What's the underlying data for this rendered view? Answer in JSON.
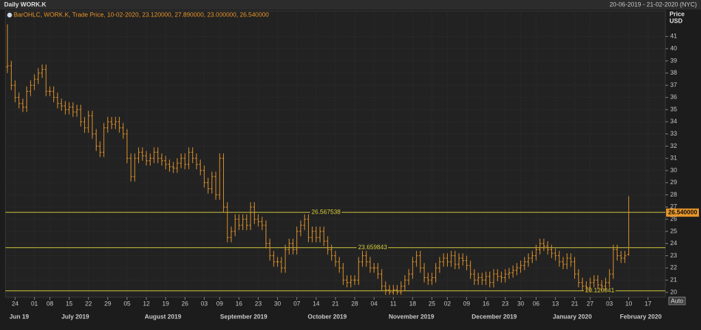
{
  "chart_data": {
    "type": "ohlc",
    "title": "Daily WORK.K",
    "subtitle": "20-06-2019 - 21-02-2020 (NYC)",
    "legend": "BarOHLC, WORK.K, Trade Price, 10-02-2020, 23.120000, 27.890000, 23.000000, 26.540000",
    "ylabel": "Price",
    "yunit": "USD",
    "button": "Auto",
    "color": "#e8962a",
    "grid": true,
    "ylim": [
      19.6,
      42.2
    ],
    "yticks": [
      20,
      21,
      22,
      23,
      24,
      25,
      26,
      27,
      28,
      29,
      30,
      31,
      32,
      33,
      34,
      35,
      36,
      37,
      38,
      39,
      40,
      41
    ],
    "hline_color": "#d8cf3c",
    "hlines": [
      26.567538,
      23.659843,
      20.120041
    ],
    "last_label": "26.540000",
    "months": [
      "Jun 19",
      "July 2019",
      "August 2019",
      "September 2019",
      "October 2019",
      "November 2019",
      "December 2019",
      "January 2020",
      "February 2020"
    ],
    "categories": [
      null,
      null,
      "24",
      null,
      null,
      null,
      null,
      "01",
      null,
      null,
      null,
      "08",
      null,
      null,
      null,
      null,
      "15",
      null,
      null,
      null,
      null,
      "22",
      null,
      null,
      null,
      null,
      "29",
      null,
      null,
      null,
      null,
      "05",
      null,
      null,
      null,
      null,
      "12",
      null,
      null,
      null,
      null,
      "19",
      null,
      null,
      null,
      null,
      "26",
      null,
      null,
      null,
      null,
      "03",
      null,
      null,
      null,
      "09",
      null,
      null,
      null,
      null,
      "16",
      null,
      null,
      null,
      null,
      "23",
      null,
      null,
      null,
      null,
      "30",
      null,
      null,
      null,
      null,
      "07",
      null,
      null,
      null,
      null,
      "14",
      null,
      null,
      null,
      null,
      "21",
      null,
      null,
      null,
      null,
      "28",
      null,
      null,
      null,
      null,
      "04",
      null,
      null,
      null,
      null,
      "11",
      null,
      null,
      null,
      null,
      "18",
      null,
      null,
      null,
      null,
      "25",
      null,
      null,
      null,
      "02",
      null,
      null,
      null,
      null,
      "09",
      null,
      null,
      null,
      null,
      "16",
      null,
      null,
      null,
      null,
      "23",
      null,
      null,
      null,
      "30",
      null,
      null,
      null,
      "06",
      null,
      null,
      null,
      null,
      "13",
      null,
      null,
      null,
      null,
      "21",
      null,
      null,
      null,
      "27",
      null,
      null,
      null,
      null,
      "03",
      null,
      null,
      null,
      null,
      "10",
      null,
      null,
      null,
      null,
      "17",
      null,
      null,
      null,
      null
    ],
    "open": [
      38.5,
      38.6,
      37,
      36,
      35.5,
      35.2,
      36.5,
      37,
      37.5,
      38,
      38.3,
      36.5,
      36.5,
      36,
      35.5,
      35.3,
      35,
      35.2,
      34.8,
      35,
      34,
      33.5,
      34.5,
      33,
      32,
      31.5,
      33.5,
      34,
      33.8,
      34,
      33.5,
      33,
      31,
      29.5,
      31,
      31.5,
      31.2,
      30.8,
      31,
      31.5,
      31,
      30.8,
      30.5,
      30.3,
      30.2,
      30.6,
      31,
      30.5,
      31.5,
      31,
      30.5,
      30,
      29,
      28.5,
      29.5,
      28,
      31,
      27,
      24.5,
      25,
      26,
      25.5,
      26,
      25.5,
      27,
      26,
      25.8,
      25.5,
      24,
      23,
      22.5,
      22.5,
      22,
      23.5,
      24,
      23.5,
      25,
      25.5,
      26,
      24.5,
      25,
      24.5,
      25,
      24.2,
      23.5,
      23,
      22.5,
      22,
      21,
      20.8,
      21,
      21,
      22.5,
      23,
      22.5,
      22,
      22,
      21.5,
      20.5,
      20.2,
      20,
      20.2,
      20,
      20.5,
      21,
      21.5,
      22.5,
      23,
      22,
      21.2,
      21,
      21.2,
      22,
      22.5,
      22.8,
      22.5,
      23,
      22.3,
      22.8,
      22.6,
      22.2,
      21.5,
      21,
      21.2,
      21,
      21.3,
      20.8,
      21.5,
      21.3,
      21.2,
      21.5,
      21.6,
      21.8,
      22,
      22.2,
      22.5,
      22.8,
      23,
      23.5,
      24,
      23.8,
      23.5,
      23.2,
      23,
      22.5,
      22.3,
      22.8,
      22.5,
      21.5,
      20.8,
      20.5,
      20.4,
      20.8,
      21,
      20.6,
      20.5,
      20.8,
      21.5,
      23.5,
      23,
      22.8,
      23.12,
      null,
      null,
      null,
      null,
      null,
      null,
      null,
      null,
      null
    ],
    "high": [
      42,
      39,
      37.4,
      36.4,
      35.9,
      36.9,
      37.4,
      37.9,
      38.4,
      38.7,
      38.7,
      36.9,
      36.9,
      36.4,
      35.9,
      35.7,
      35.6,
      35.6,
      35.4,
      35.4,
      34.4,
      34.9,
      34.9,
      33.4,
      32.4,
      33.9,
      34.4,
      34.4,
      34.4,
      34.4,
      33.9,
      33.4,
      31.4,
      31.4,
      31.9,
      31.9,
      31.6,
      31.4,
      31.9,
      31.9,
      31.4,
      31.2,
      30.9,
      30.7,
      31,
      31.4,
      31.4,
      31.9,
      31.9,
      31.4,
      30.9,
      30.4,
      29.4,
      29.9,
      29.9,
      31.4,
      31.4,
      27.4,
      25.4,
      26.4,
      26.4,
      26.4,
      26.4,
      27.4,
      27.4,
      26.4,
      26.2,
      25.9,
      24.4,
      23.4,
      22.9,
      22.9,
      23.9,
      24.4,
      24.4,
      25.4,
      25.9,
      26.4,
      26.4,
      25.4,
      25.4,
      25.4,
      25.4,
      24.6,
      23.9,
      23.4,
      22.9,
      22.4,
      21.4,
      21.4,
      21.4,
      22.9,
      23.4,
      23.4,
      22.9,
      22.4,
      22.4,
      21.9,
      20.9,
      20.6,
      20.6,
      20.6,
      20.9,
      21.4,
      21.9,
      22.9,
      23.4,
      23.4,
      22.4,
      21.6,
      21.6,
      22.4,
      22.9,
      23.2,
      23.2,
      23.4,
      23.4,
      23.2,
      23.2,
      23,
      22.6,
      21.9,
      21.6,
      21.6,
      21.7,
      21.7,
      21.9,
      21.9,
      21.7,
      21.9,
      22,
      22.2,
      22.4,
      22.6,
      22.9,
      23.2,
      23.4,
      23.9,
      24.4,
      24.4,
      24.2,
      23.9,
      23.6,
      23.4,
      22.9,
      23.2,
      23.2,
      22.9,
      21.9,
      21.2,
      20.9,
      21.2,
      21.4,
      21.4,
      21,
      21.2,
      21.9,
      23.9,
      23.9,
      23.4,
      23.4,
      27.89,
      null,
      null,
      null,
      null,
      null,
      null,
      null,
      null,
      null
    ],
    "low": [
      38,
      36.6,
      35.6,
      35.1,
      34.8,
      34.8,
      36.1,
      36.6,
      37.1,
      37.6,
      36.1,
      36.1,
      35.6,
      35.1,
      34.9,
      34.6,
      34.6,
      34.4,
      34.4,
      33.6,
      33.1,
      33.1,
      32.6,
      31.6,
      31.1,
      31.1,
      33.1,
      33.4,
      33.4,
      33.1,
      32.6,
      30.6,
      29.1,
      29.1,
      30.6,
      30.8,
      30.4,
      30.4,
      30.6,
      30.6,
      30.4,
      30.1,
      29.9,
      29.8,
      29.8,
      30.2,
      30.1,
      30.1,
      30.6,
      30.1,
      29.6,
      28.6,
      28.1,
      28.1,
      27.6,
      27.6,
      26.6,
      24.1,
      24.1,
      24.6,
      25.1,
      25.1,
      25.1,
      25.1,
      25.6,
      25.4,
      25.1,
      23.6,
      22.6,
      22.1,
      22.1,
      21.6,
      21.6,
      23.1,
      23.1,
      23.1,
      24.6,
      25.1,
      24.1,
      24.1,
      24.1,
      24.1,
      23.8,
      23.1,
      22.6,
      22.1,
      21.6,
      20.6,
      20.4,
      20.4,
      20.6,
      20.6,
      22.1,
      22.1,
      21.6,
      21.6,
      21.1,
      20.1,
      19.8,
      19.8,
      19.8,
      19.8,
      19.8,
      20.1,
      20.6,
      21.1,
      22.1,
      21.6,
      20.8,
      20.6,
      20.6,
      20.8,
      21.6,
      22.1,
      22.1,
      22.1,
      21.9,
      21.9,
      22.2,
      21.8,
      21.1,
      20.6,
      20.6,
      20.6,
      20.6,
      20.4,
      20.4,
      20.9,
      20.8,
      20.8,
      21.1,
      21.2,
      21.4,
      21.6,
      21.8,
      22.1,
      22.4,
      22.6,
      23.1,
      23.4,
      23.1,
      22.8,
      22.6,
      22.1,
      21.9,
      21.9,
      22.1,
      21.1,
      20.4,
      20.1,
      20,
      20,
      20.4,
      20.2,
      20.1,
      20.1,
      20.4,
      21.1,
      22.6,
      22.4,
      22.4,
      23,
      null,
      null,
      null,
      null,
      null,
      null,
      null,
      null,
      null
    ],
    "close": [
      38.6,
      37,
      36,
      35.5,
      35.2,
      36.5,
      37,
      37.5,
      38,
      38.3,
      36.5,
      36.5,
      36,
      35.5,
      35.3,
      35,
      35.2,
      34.8,
      35,
      34,
      33.5,
      34.5,
      33,
      32,
      31.5,
      33.5,
      34,
      33.8,
      34,
      33.5,
      33,
      31,
      29.5,
      31,
      31.5,
      31.2,
      30.8,
      31,
      31.5,
      31,
      30.8,
      30.5,
      30.3,
      30.2,
      30.6,
      31,
      30.5,
      31.5,
      31,
      30.5,
      30,
      29,
      28.5,
      29.5,
      28,
      31,
      27,
      24.5,
      25,
      26,
      25.5,
      26,
      25.5,
      27,
      26,
      25.8,
      25.5,
      24,
      23,
      22.5,
      22.5,
      22,
      23.5,
      24,
      23.5,
      25,
      25.5,
      26,
      24.5,
      25,
      24.5,
      25,
      24.2,
      23.5,
      23,
      22.5,
      22,
      21,
      20.8,
      21,
      21,
      22.5,
      23,
      22.5,
      22,
      22,
      21.5,
      20.5,
      20.2,
      20,
      20.2,
      20,
      20.5,
      21,
      21.5,
      22.5,
      23,
      22,
      21.2,
      21,
      21.2,
      22,
      22.5,
      22.8,
      22.5,
      23,
      22.3,
      22.8,
      22.6,
      22.2,
      21.5,
      21,
      21.2,
      21,
      21.3,
      20.8,
      21.5,
      21.3,
      21.2,
      21.5,
      21.6,
      21.8,
      22,
      22.2,
      22.5,
      22.8,
      23,
      23.5,
      24,
      23.8,
      23.5,
      23.2,
      23,
      22.5,
      22.3,
      22.8,
      22.5,
      21.5,
      20.8,
      20.5,
      20.4,
      20.8,
      21,
      20.6,
      20.5,
      20.8,
      21.5,
      23.5,
      23,
      22.8,
      23,
      26.54,
      null,
      null,
      null,
      null,
      null,
      null,
      null,
      null,
      null
    ]
  }
}
